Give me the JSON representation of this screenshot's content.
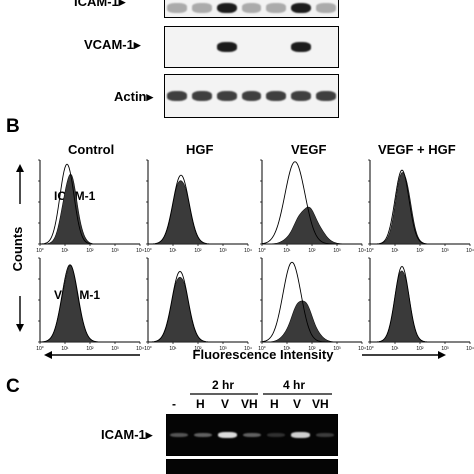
{
  "panelA": {
    "rows": [
      {
        "label": "ICAM-1▸",
        "bands": [
          0.35,
          0.35,
          0.95,
          0.35,
          0.35,
          0.95,
          0.35
        ]
      },
      {
        "label": "VCAM-1▸",
        "bands": [
          0,
          0,
          0.95,
          0,
          0,
          0.95,
          0
        ]
      },
      {
        "label": "Actin▸",
        "bands": [
          0.8,
          0.8,
          0.8,
          0.8,
          0.8,
          0.8,
          0.8
        ]
      }
    ]
  },
  "panelB": {
    "letter": "B",
    "columns": [
      "Control",
      "HGF",
      "VEGF",
      "VEGF + HGF"
    ],
    "row_labels": [
      "ICAM-1",
      "VCAM-1"
    ],
    "y_axis": "Counts",
    "x_axis": "Fluorescence Intensity",
    "tick_labels": [
      "10°",
      "10¹",
      "10²",
      "10³",
      "10⁴"
    ]
  },
  "panelC": {
    "letter": "C",
    "groups": [
      "2 hr",
      "4 hr"
    ],
    "lanes": [
      "-",
      "H",
      "V",
      "VH",
      "H",
      "V",
      "VH"
    ],
    "row_label": "ICAM-1▸",
    "bands": [
      0.35,
      0.4,
      0.9,
      0.4,
      0.2,
      0.85,
      0.25
    ]
  }
}
